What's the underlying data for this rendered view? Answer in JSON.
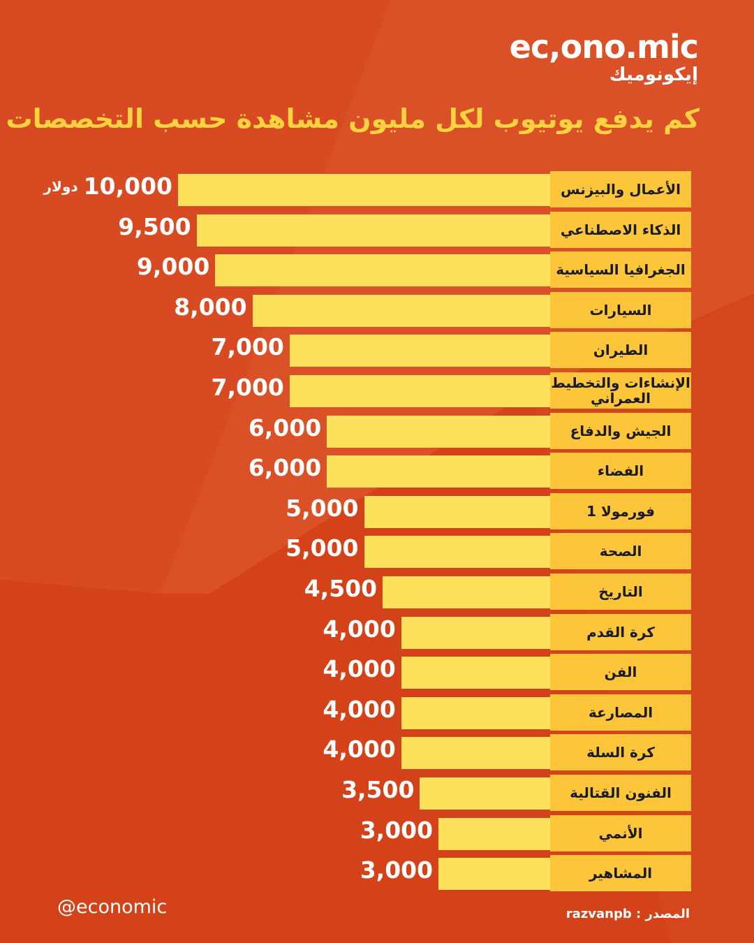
{
  "brand": {
    "logo": "ec,ono.mic",
    "logo_ar": "إيكونوميك",
    "handle": "@economic",
    "source": "المصدر : razvanpb"
  },
  "chart_data": {
    "type": "bar",
    "orientation": "horizontal",
    "title": "كم يدفع يوتيوب لكل مليون مشاهدة حسب التخصصات ؟",
    "unit": "دولار",
    "categories": [
      "الأعمال والبيزنس",
      "الذكاء الاصطناعي",
      "الجغرافيا السياسية",
      "السيارات",
      "الطيران",
      "الإنشاءات والتخطيط العمراني",
      "الجيش والدفاع",
      "الفضاء",
      "فورمولا 1",
      "الصحة",
      "التاريخ",
      "كرة القدم",
      "الفن",
      "المصارعة",
      "كرة السلة",
      "الفنون القتالية",
      "الأنمي",
      "المشاهير"
    ],
    "values": [
      10000,
      9500,
      9000,
      8000,
      7000,
      7000,
      6000,
      6000,
      5000,
      5000,
      4500,
      4000,
      4000,
      4000,
      4000,
      3500,
      3000,
      3000
    ],
    "value_labels": [
      "10,000",
      "9,500",
      "9,000",
      "8,000",
      "7,000",
      "7,000",
      "6,000",
      "6,000",
      "5,000",
      "5,000",
      "4,500",
      "4,000",
      "4,000",
      "4,000",
      "4,000",
      "3,500",
      "3,000",
      "3,000"
    ],
    "color": "#fde15c",
    "label_color": "#fdc63a"
  }
}
